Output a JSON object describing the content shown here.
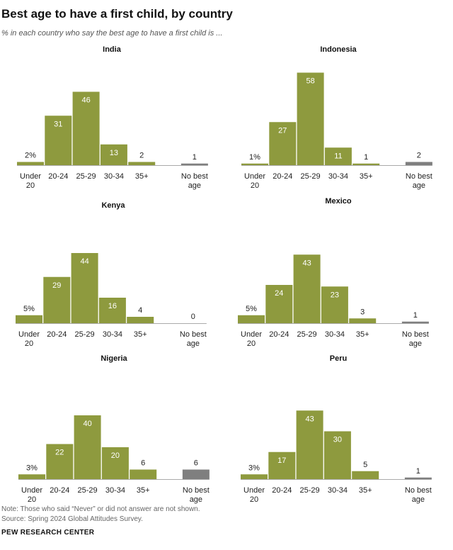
{
  "title": "Best age to have a first child, by country",
  "subtitle": "% in each country who say the best age to have a first child is ...",
  "note": "Note: Those who said “Never” or did not answer are not shown.",
  "source": "Source: Spring 2024 Global Attitudes Survey.",
  "brand": "PEW RESEARCH CENTER",
  "colors": {
    "bar": "#8e9a3e",
    "no_best": "#7f7f7f",
    "label_inside": "#ffffff",
    "label_outside": "#222222",
    "axis": "#aaaaaa"
  },
  "chart_data": [
    {
      "type": "bar",
      "title": "India",
      "categories": [
        "Under 20",
        "20-24",
        "25-29",
        "30-34",
        "35+",
        "No best age"
      ],
      "values": [
        2,
        31,
        46,
        13,
        2,
        1
      ],
      "labels": [
        "2%",
        "31",
        "46",
        "13",
        "2",
        "1"
      ]
    },
    {
      "type": "bar",
      "title": "Indonesia",
      "categories": [
        "Under 20",
        "20-24",
        "25-29",
        "30-34",
        "35+",
        "No best age"
      ],
      "values": [
        1,
        27,
        58,
        11,
        1,
        2
      ],
      "labels": [
        "1%",
        "27",
        "58",
        "11",
        "1",
        "2"
      ]
    },
    {
      "type": "bar",
      "title": "Kenya",
      "categories": [
        "Under 20",
        "20-24",
        "25-29",
        "30-34",
        "35+",
        "No best age"
      ],
      "values": [
        5,
        29,
        44,
        16,
        4,
        0
      ],
      "labels": [
        "5%",
        "29",
        "44",
        "16",
        "4",
        "0"
      ]
    },
    {
      "type": "bar",
      "title": "Mexico",
      "categories": [
        "Under 20",
        "20-24",
        "25-29",
        "30-34",
        "35+",
        "No best age"
      ],
      "values": [
        5,
        24,
        43,
        23,
        3,
        1
      ],
      "labels": [
        "5%",
        "24",
        "43",
        "23",
        "3",
        "1"
      ]
    },
    {
      "type": "bar",
      "title": "Nigeria",
      "categories": [
        "Under 20",
        "20-24",
        "25-29",
        "30-34",
        "35+",
        "No best age"
      ],
      "values": [
        3,
        22,
        40,
        20,
        6,
        6
      ],
      "labels": [
        "3%",
        "22",
        "40",
        "20",
        "6",
        "6"
      ]
    },
    {
      "type": "bar",
      "title": "Peru",
      "categories": [
        "Under 20",
        "20-24",
        "25-29",
        "30-34",
        "35+",
        "No best age"
      ],
      "values": [
        3,
        17,
        43,
        30,
        5,
        1
      ],
      "labels": [
        "3%",
        "17",
        "43",
        "30",
        "5",
        "1"
      ]
    }
  ]
}
